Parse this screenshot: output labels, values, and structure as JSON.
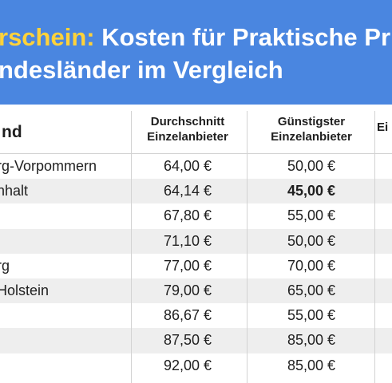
{
  "title": {
    "line1_accent": "rschein:",
    "line1_rest": " Kosten für Praktische Pr",
    "line2": "ndesländer im Vergleich"
  },
  "table": {
    "headers": {
      "land": "nd",
      "col1_line1": "Durchschnitt",
      "col1_line2": "Einzelanbieter",
      "col2_line1": "Günstigster",
      "col2_line2": "Einzelanbieter",
      "col3_line2": "Ei"
    },
    "rows": [
      {
        "land": "rg-Vorpommern",
        "avg": "64,00 €",
        "min": "50,00 €"
      },
      {
        "land": "nhalt",
        "avg": "64,14 €",
        "min": "45,00 €"
      },
      {
        "land": "",
        "avg": "67,80 €",
        "min": "55,00 €"
      },
      {
        "land": "",
        "avg": "71,10 €",
        "min": "50,00 €"
      },
      {
        "land": "rg",
        "avg": "77,00 €",
        "min": "70,00 €"
      },
      {
        "land": "Holstein",
        "avg": "79,00 €",
        "min": "65,00 €"
      },
      {
        "land": "",
        "avg": "86,67 €",
        "min": "55,00 €"
      },
      {
        "land": "",
        "avg": "87,50 €",
        "min": "85,00 €"
      },
      {
        "land": "",
        "avg": "92,00 €",
        "min": "85,00 €"
      }
    ]
  }
}
